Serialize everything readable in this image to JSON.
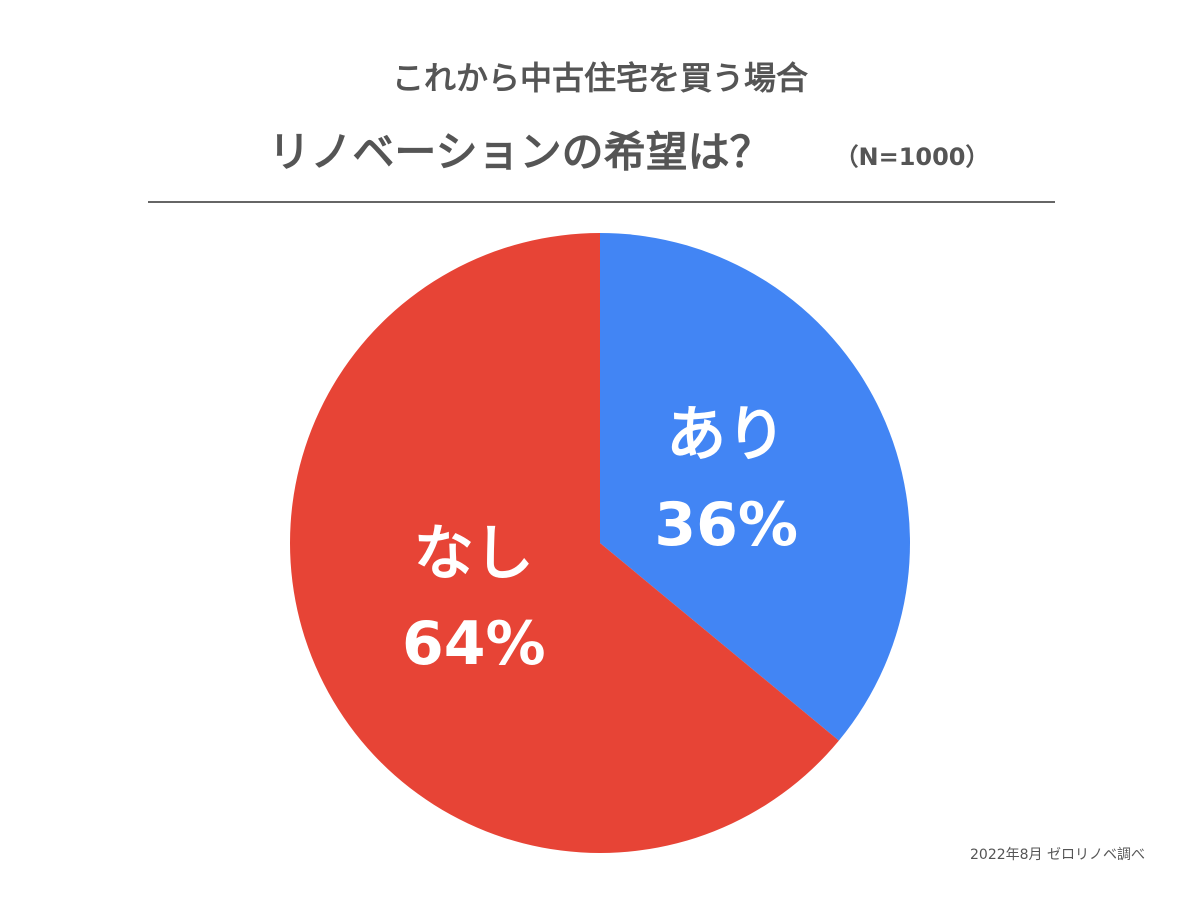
{
  "chart_data": {
    "type": "pie",
    "title": "これから中古住宅を買う場合",
    "subtitle": "リノベーションの希望は？",
    "sample_note": "（N=1000）",
    "categories": [
      "あり",
      "なし"
    ],
    "values": [
      36,
      64
    ],
    "value_labels": [
      "36%",
      "64%"
    ],
    "colors": [
      "#4285f4",
      "#e74436"
    ],
    "source": "2022年8月 ゼロリノベ調べ"
  }
}
